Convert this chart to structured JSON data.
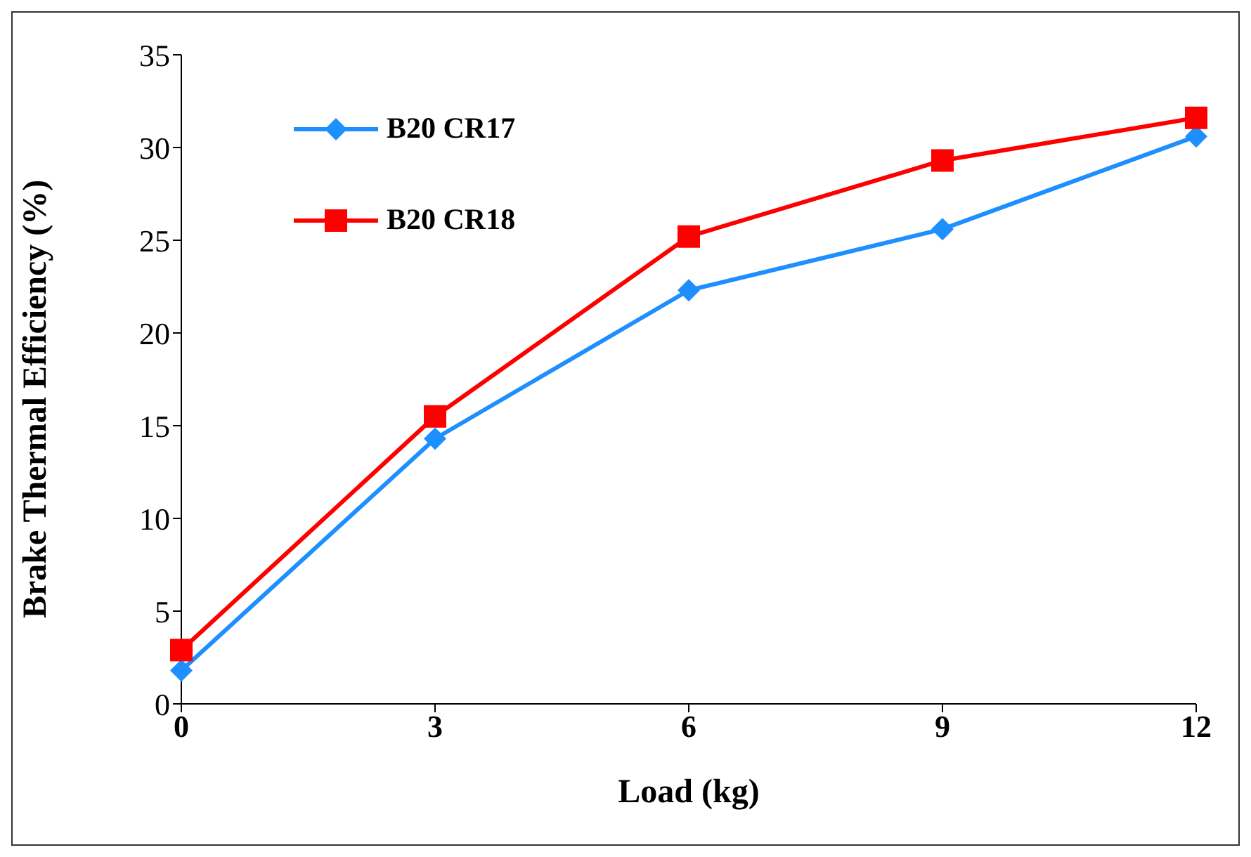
{
  "chart_data": {
    "type": "line",
    "xlabel": "Load (kg)",
    "ylabel": "Brake Thermal Efficiency (%)",
    "categories": [
      "0",
      "3",
      "6",
      "9",
      "12"
    ],
    "series": [
      {
        "name": "B20 CR17",
        "color": "#1e8fff",
        "marker": "diamond",
        "values": [
          1.8,
          14.3,
          22.3,
          25.6,
          30.6
        ]
      },
      {
        "name": "B20 CR18",
        "color": "#ff0000",
        "marker": "square",
        "values": [
          2.9,
          15.5,
          25.2,
          29.3,
          31.6
        ]
      }
    ],
    "ylim": [
      0,
      35
    ],
    "yticks": [
      0,
      5,
      10,
      15,
      20,
      25,
      30,
      35
    ],
    "grid": false,
    "legend": "top left",
    "line_style": "solid"
  }
}
